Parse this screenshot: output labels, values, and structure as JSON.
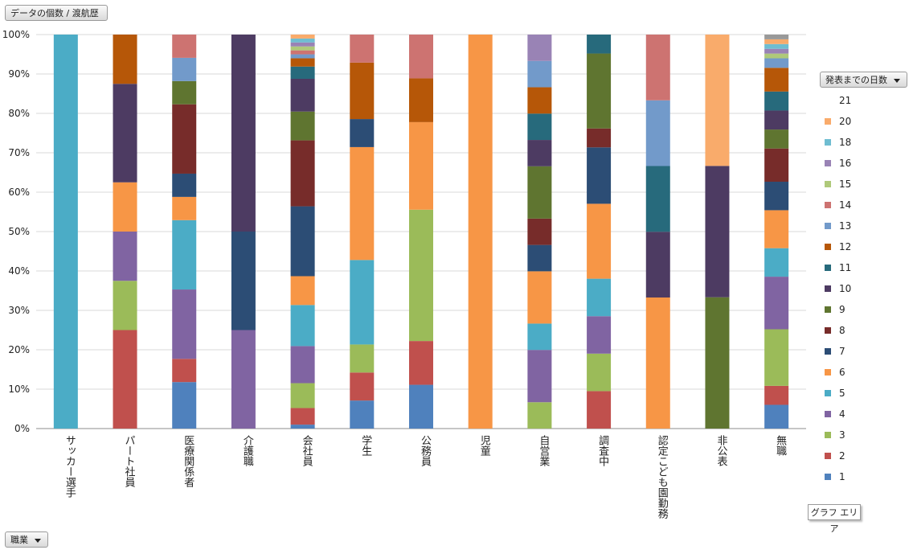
{
  "ui": {
    "value_field": "データの個数 / 渡航歴",
    "row_field": "職業",
    "legend_field": "発表までの日数",
    "chart_area_label": "グラフ エリア"
  },
  "legend": [
    "21",
    "20",
    "18",
    "16",
    "15",
    "14",
    "13",
    "12",
    "11",
    "10",
    "9",
    "8",
    "7",
    "6",
    "5",
    "4",
    "3",
    "2",
    "1"
  ],
  "colors": {
    "1": "#4f81bd",
    "2": "#c0504d",
    "3": "#9bbb59",
    "4": "#8064a2",
    "5": "#4bacc6",
    "6": "#f79646",
    "7": "#2c4d75",
    "8": "#772c2a",
    "9": "#5f7530",
    "10": "#4d3b62",
    "11": "#276a7c",
    "12": "#b65708",
    "13": "#729aca",
    "14": "#cd7371",
    "15": "#afc97a",
    "16": "#9983b5",
    "18": "#6fbdd1",
    "20": "#f9ab6b"
  },
  "chart_data": {
    "type": "stacked_bar_100",
    "ylim": [
      0,
      100
    ],
    "y_ticks": [
      "0%",
      "10%",
      "20%",
      "30%",
      "40%",
      "50%",
      "60%",
      "70%",
      "80%",
      "90%",
      "100%"
    ],
    "categories": [
      "サッカー選手",
      "パート社員",
      "医療関係者",
      "介護職",
      "会社員",
      "学生",
      "公務員",
      "児童",
      "自営業",
      "調査中",
      "認定こども園勤務",
      "非公表",
      "無職"
    ],
    "series": [
      {
        "name": "1",
        "values": [
          0,
          0,
          11.8,
          0,
          1.0,
          7.1,
          11.1,
          0,
          0,
          0,
          0,
          0,
          6.0
        ]
      },
      {
        "name": "2",
        "values": [
          0,
          25.0,
          5.9,
          0,
          4.2,
          7.1,
          11.1,
          0,
          0,
          9.5,
          0,
          0,
          4.8
        ]
      },
      {
        "name": "3",
        "values": [
          0,
          12.5,
          0,
          0,
          6.3,
          7.1,
          33.3,
          0,
          6.7,
          9.5,
          0,
          0,
          14.3
        ]
      },
      {
        "name": "4",
        "values": [
          0,
          12.5,
          17.6,
          25.0,
          9.4,
          0,
          0,
          0,
          13.3,
          9.5,
          0,
          0,
          13.3
        ]
      },
      {
        "name": "5",
        "values": [
          100,
          0,
          17.6,
          0,
          10.4,
          21.4,
          0,
          0,
          6.7,
          9.5,
          0,
          0,
          7.2
        ]
      },
      {
        "name": "6",
        "values": [
          0,
          12.5,
          5.9,
          0,
          7.3,
          28.6,
          22.2,
          100,
          13.3,
          19.0,
          33.3,
          0,
          9.6
        ]
      },
      {
        "name": "7",
        "values": [
          0,
          0,
          5.9,
          25.0,
          17.7,
          7.1,
          0,
          0,
          6.7,
          14.3,
          0,
          0,
          7.2
        ]
      },
      {
        "name": "8",
        "values": [
          0,
          0,
          17.6,
          0,
          16.7,
          0,
          0,
          0,
          6.7,
          4.8,
          0,
          0,
          8.4
        ]
      },
      {
        "name": "9",
        "values": [
          0,
          0,
          5.9,
          0,
          7.3,
          0,
          0,
          0,
          13.3,
          19.0,
          0,
          33.3,
          4.8
        ]
      },
      {
        "name": "10",
        "values": [
          0,
          25.0,
          0,
          50.0,
          8.3,
          0,
          0,
          0,
          6.7,
          0,
          16.7,
          33.3,
          4.8
        ]
      },
      {
        "name": "11",
        "values": [
          0,
          0,
          0,
          0,
          3.1,
          0,
          0,
          0,
          6.7,
          4.8,
          16.7,
          0,
          4.8
        ]
      },
      {
        "name": "12",
        "values": [
          0,
          12.5,
          0,
          0,
          2.1,
          14.3,
          11.1,
          0,
          6.7,
          0,
          0,
          0,
          6.0
        ]
      },
      {
        "name": "13",
        "values": [
          0,
          0,
          5.9,
          0,
          1.0,
          0,
          0,
          0,
          6.7,
          0,
          16.7,
          0,
          2.4
        ]
      },
      {
        "name": "14",
        "values": [
          0,
          0,
          5.9,
          0,
          1.0,
          7.1,
          11.1,
          0,
          0,
          0,
          16.7,
          0,
          0
        ]
      },
      {
        "name": "15",
        "values": [
          0,
          0,
          0,
          0,
          1.0,
          0,
          0,
          0,
          0,
          0,
          0,
          0,
          1.2
        ]
      },
      {
        "name": "16",
        "values": [
          0,
          0,
          0,
          0,
          1.0,
          0,
          0,
          0,
          6.7,
          0,
          0,
          0,
          1.2
        ]
      },
      {
        "name": "18",
        "values": [
          0,
          0,
          0,
          0,
          1.0,
          0,
          0,
          0,
          0,
          0,
          0,
          0,
          1.2
        ]
      },
      {
        "name": "20",
        "values": [
          0,
          0,
          0,
          0,
          1.0,
          0,
          0,
          0,
          0,
          0,
          0,
          33.3,
          1.2
        ]
      },
      {
        "name": "21",
        "values": [
          0,
          0,
          0,
          0,
          0,
          0,
          0,
          0,
          0,
          0,
          0,
          0,
          1.2
        ]
      }
    ]
  }
}
